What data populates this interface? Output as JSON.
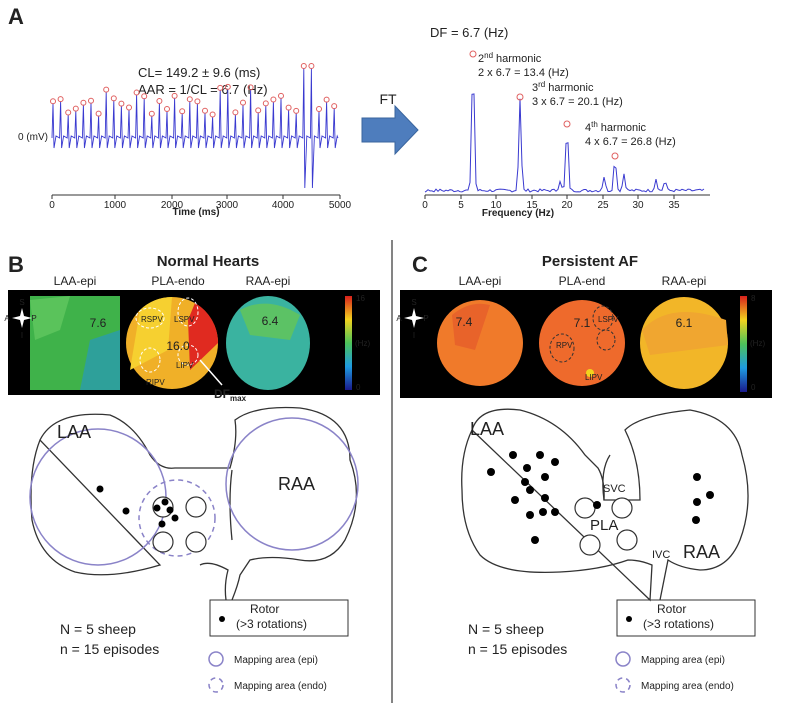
{
  "panel_a": {
    "label": "A",
    "signal": {
      "cl": "CL= 149.2 ± 9.6 (ms)",
      "aar": "AAR = 1/CL = 6.7 (Hz)",
      "y_label": "0 (mV)",
      "x_label": "Time (ms)",
      "xticks": [
        0,
        1000,
        2000,
        3000,
        4000,
        5000
      ]
    },
    "transform": "FT",
    "spectrum": {
      "df": "DF = 6.7 (Hz)",
      "x_label": "Frequency (Hz)",
      "xticks": [
        0,
        5,
        10,
        15,
        20,
        25,
        30,
        35
      ],
      "harmonics": [
        {
          "ordinal": "2",
          "suffix": "nd",
          "label": "harmonic",
          "formula": "2 x 6.7 = 13.4 (Hz)"
        },
        {
          "ordinal": "3",
          "suffix": "rd",
          "label": "harmonic",
          "formula": "3 x 6.7 = 20.1 (Hz)"
        },
        {
          "ordinal": "4",
          "suffix": "th",
          "label": "harmonic",
          "formula": "4 x 6.7 = 26.8 (Hz)"
        }
      ]
    }
  },
  "panel_b": {
    "label": "B",
    "title": "Normal Hearts",
    "maps": [
      {
        "name": "LAA-epi",
        "value": "7.6"
      },
      {
        "name": "PLA-endo",
        "value": "16.0"
      },
      {
        "name": "RAA-epi",
        "value": "6.4"
      }
    ],
    "veins": [
      "RSPV",
      "LSPV",
      "LIPV",
      "RIPV"
    ],
    "df_max": {
      "main": "DF",
      "sub": "max"
    },
    "orientation": [
      "S",
      "A",
      "P",
      "I"
    ],
    "colorbar": {
      "max": "16",
      "unit": "(Hz)",
      "min": "0"
    },
    "structures": [
      "LAA",
      "RAA"
    ],
    "counts": [
      "N = 5 sheep",
      "n = 15 episodes"
    ],
    "legend": {
      "rotor": "Rotor",
      "rotor_note": "(>3 rotations)",
      "epi": "Mapping area (epi)",
      "endo": "Mapping area (endo)"
    }
  },
  "panel_c": {
    "label": "C",
    "title": "Persistent AF",
    "maps": [
      {
        "name": "LAA-epi",
        "value": "7.4"
      },
      {
        "name": "PLA-end",
        "value": "7.1"
      },
      {
        "name": "RAA-epi",
        "value": "6.1"
      }
    ],
    "veins": [
      "RPV",
      "LSPV",
      "LIPV"
    ],
    "orientation": [
      "S",
      "A",
      "P",
      "I"
    ],
    "colorbar": {
      "max": "8",
      "unit": "(Hz)",
      "min": "0"
    },
    "structures": [
      "LAA",
      "SVC",
      "PLA",
      "IVC",
      "RAA"
    ],
    "counts": [
      "N = 5 sheep",
      "n = 15 episodes"
    ],
    "legend": {
      "rotor": "Rotor",
      "rotor_note": "(>3 rotations)",
      "epi": "Mapping area (epi)",
      "endo": "Mapping area (endo)"
    }
  }
}
